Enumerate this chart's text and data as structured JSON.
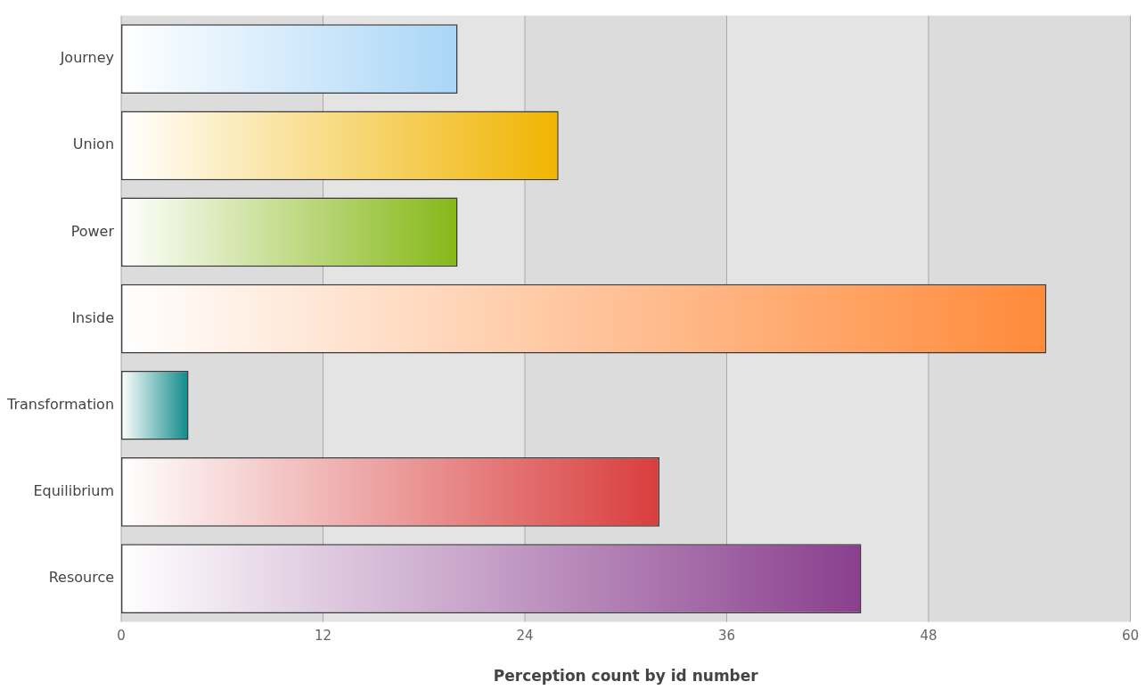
{
  "chart_data": {
    "type": "bar",
    "orientation": "horizontal",
    "xlabel": "Perception count by id number",
    "categories": [
      "Journey",
      "Union",
      "Power",
      "Inside",
      "Transformation",
      "Equilibrium",
      "Resource"
    ],
    "values": [
      20,
      26,
      20,
      55,
      4,
      32,
      44
    ],
    "colors": [
      "#a9d6f7",
      "#f0b400",
      "#86b817",
      "#ff8a3a",
      "#0f8a8a",
      "#d93d3d",
      "#8a3f8e"
    ],
    "xlim": [
      0,
      60
    ],
    "xticks": [
      0,
      12,
      24,
      36,
      48,
      60
    ],
    "grid": "x",
    "legend": false
  }
}
